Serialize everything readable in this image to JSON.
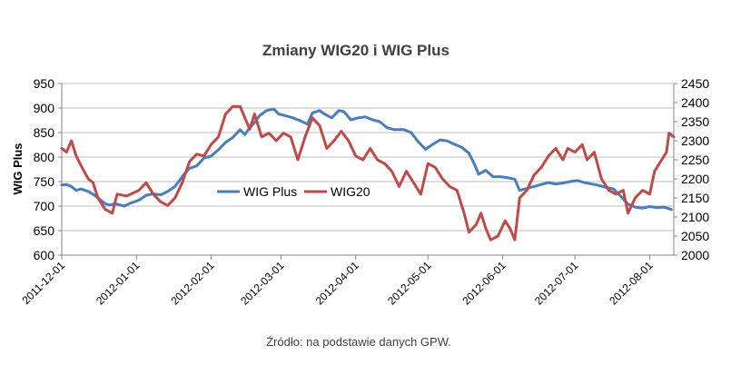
{
  "chart_data": {
    "type": "line",
    "title": "Zmiany WIG20 i WIG Plus",
    "ylabel": "WIG Plus",
    "y2label": "",
    "ylim": [
      600,
      950
    ],
    "y_ticks": [
      "950",
      "900",
      "850",
      "800",
      "750",
      "700",
      "650",
      "600"
    ],
    "y2lim": [
      2000,
      2450
    ],
    "y2_ticks": [
      "2450",
      "2400",
      "2350",
      "2300",
      "2250",
      "2200",
      "2150",
      "2100",
      "2050",
      "2000"
    ],
    "xlim": [
      "2011-12-01",
      "2012-08-11"
    ],
    "x_ticks": [
      "2011-12-01",
      "2012-01-01",
      "2012-02-01",
      "2012-03-01",
      "2012-04-01",
      "2012-05-01",
      "2012-06-01",
      "2012-07-01",
      "2012-08-01"
    ],
    "grid": true,
    "legend_position": "center-left",
    "series": [
      {
        "name": "WIG Plus",
        "axis": "left",
        "color": "#4a7ebb",
        "points": [
          [
            "2011-12-01",
            743
          ],
          [
            "2011-12-03",
            744
          ],
          [
            "2011-12-05",
            740
          ],
          [
            "2011-12-07",
            732
          ],
          [
            "2011-12-09",
            735
          ],
          [
            "2011-12-12",
            730
          ],
          [
            "2011-12-14",
            724
          ],
          [
            "2011-12-16",
            717
          ],
          [
            "2011-12-19",
            705
          ],
          [
            "2011-12-21",
            702
          ],
          [
            "2011-12-23",
            705
          ],
          [
            "2011-12-27",
            700
          ],
          [
            "2011-12-29",
            705
          ],
          [
            "2012-01-02",
            712
          ],
          [
            "2012-01-05",
            722
          ],
          [
            "2012-01-08",
            725
          ],
          [
            "2012-01-11",
            723
          ],
          [
            "2012-01-14",
            730
          ],
          [
            "2012-01-17",
            740
          ],
          [
            "2012-01-20",
            760
          ],
          [
            "2012-01-23",
            777
          ],
          [
            "2012-01-26",
            782
          ],
          [
            "2012-01-29",
            798
          ],
          [
            "2012-02-01",
            802
          ],
          [
            "2012-02-04",
            815
          ],
          [
            "2012-02-07",
            830
          ],
          [
            "2012-02-10",
            840
          ],
          [
            "2012-02-13",
            856
          ],
          [
            "2012-02-15",
            846
          ],
          [
            "2012-02-17",
            860
          ],
          [
            "2012-02-19",
            870
          ],
          [
            "2012-02-21",
            884
          ],
          [
            "2012-02-24",
            895
          ],
          [
            "2012-02-27",
            898
          ],
          [
            "2012-02-29",
            888
          ],
          [
            "2012-03-03",
            884
          ],
          [
            "2012-03-06",
            880
          ],
          [
            "2012-03-09",
            874
          ],
          [
            "2012-03-12",
            867
          ],
          [
            "2012-03-14",
            890
          ],
          [
            "2012-03-17",
            895
          ],
          [
            "2012-03-19",
            888
          ],
          [
            "2012-03-22",
            880
          ],
          [
            "2012-03-25",
            895
          ],
          [
            "2012-03-27",
            893
          ],
          [
            "2012-03-30",
            876
          ],
          [
            "2012-04-02",
            880
          ],
          [
            "2012-04-05",
            882
          ],
          [
            "2012-04-08",
            876
          ],
          [
            "2012-04-11",
            872
          ],
          [
            "2012-04-14",
            860
          ],
          [
            "2012-04-17",
            856
          ],
          [
            "2012-04-21",
            856
          ],
          [
            "2012-04-24",
            850
          ],
          [
            "2012-04-27",
            831
          ],
          [
            "2012-04-30",
            816
          ],
          [
            "2012-05-03",
            826
          ],
          [
            "2012-05-06",
            835
          ],
          [
            "2012-05-09",
            833
          ],
          [
            "2012-05-12",
            826
          ],
          [
            "2012-05-15",
            820
          ],
          [
            "2012-05-18",
            808
          ],
          [
            "2012-05-20",
            788
          ],
          [
            "2012-05-22",
            765
          ],
          [
            "2012-05-25",
            773
          ],
          [
            "2012-05-28",
            760
          ],
          [
            "2012-05-31",
            760
          ],
          [
            "2012-06-03",
            758
          ],
          [
            "2012-06-06",
            755
          ],
          [
            "2012-06-08",
            732
          ],
          [
            "2012-06-11",
            736
          ],
          [
            "2012-06-14",
            740
          ],
          [
            "2012-06-17",
            744
          ],
          [
            "2012-06-20",
            748
          ],
          [
            "2012-06-23",
            745
          ],
          [
            "2012-06-26",
            747
          ],
          [
            "2012-06-29",
            750
          ],
          [
            "2012-07-02",
            752
          ],
          [
            "2012-07-05",
            748
          ],
          [
            "2012-07-08",
            745
          ],
          [
            "2012-07-11",
            742
          ],
          [
            "2012-07-14",
            738
          ],
          [
            "2012-07-17",
            735
          ],
          [
            "2012-07-20",
            720
          ],
          [
            "2012-07-23",
            704
          ],
          [
            "2012-07-26",
            698
          ],
          [
            "2012-07-29",
            696
          ],
          [
            "2012-08-01",
            699
          ],
          [
            "2012-08-04",
            697
          ],
          [
            "2012-08-07",
            698
          ],
          [
            "2012-08-10",
            693
          ]
        ]
      },
      {
        "name": "WIG20",
        "axis": "right",
        "color": "#be4b48",
        "points": [
          [
            "2011-12-01",
            2280
          ],
          [
            "2011-12-03",
            2270
          ],
          [
            "2011-12-05",
            2300
          ],
          [
            "2011-12-07",
            2260
          ],
          [
            "2011-12-09",
            2235
          ],
          [
            "2011-12-12",
            2200
          ],
          [
            "2011-12-14",
            2190
          ],
          [
            "2011-12-16",
            2150
          ],
          [
            "2011-12-19",
            2120
          ],
          [
            "2011-12-22",
            2110
          ],
          [
            "2011-12-24",
            2160
          ],
          [
            "2011-12-28",
            2155
          ],
          [
            "2012-01-02",
            2170
          ],
          [
            "2012-01-05",
            2190
          ],
          [
            "2012-01-08",
            2160
          ],
          [
            "2012-01-11",
            2140
          ],
          [
            "2012-01-14",
            2130
          ],
          [
            "2012-01-17",
            2150
          ],
          [
            "2012-01-20",
            2190
          ],
          [
            "2012-01-23",
            2245
          ],
          [
            "2012-01-26",
            2265
          ],
          [
            "2012-01-29",
            2260
          ],
          [
            "2012-02-01",
            2290
          ],
          [
            "2012-02-04",
            2310
          ],
          [
            "2012-02-07",
            2370
          ],
          [
            "2012-02-10",
            2390
          ],
          [
            "2012-02-13",
            2390
          ],
          [
            "2012-02-15",
            2360
          ],
          [
            "2012-02-17",
            2330
          ],
          [
            "2012-02-19",
            2370
          ],
          [
            "2012-02-22",
            2310
          ],
          [
            "2012-02-25",
            2320
          ],
          [
            "2012-02-28",
            2300
          ],
          [
            "2012-03-02",
            2320
          ],
          [
            "2012-03-05",
            2310
          ],
          [
            "2012-03-08",
            2250
          ],
          [
            "2012-03-11",
            2310
          ],
          [
            "2012-03-14",
            2360
          ],
          [
            "2012-03-17",
            2340
          ],
          [
            "2012-03-20",
            2280
          ],
          [
            "2012-03-23",
            2300
          ],
          [
            "2012-03-26",
            2325
          ],
          [
            "2012-03-29",
            2300
          ],
          [
            "2012-04-01",
            2260
          ],
          [
            "2012-04-04",
            2250
          ],
          [
            "2012-04-07",
            2280
          ],
          [
            "2012-04-10",
            2250
          ],
          [
            "2012-04-13",
            2240
          ],
          [
            "2012-04-16",
            2220
          ],
          [
            "2012-04-19",
            2180
          ],
          [
            "2012-04-22",
            2220
          ],
          [
            "2012-04-25",
            2190
          ],
          [
            "2012-04-28",
            2160
          ],
          [
            "2012-05-01",
            2240
          ],
          [
            "2012-05-04",
            2230
          ],
          [
            "2012-05-07",
            2200
          ],
          [
            "2012-05-10",
            2180
          ],
          [
            "2012-05-13",
            2170
          ],
          [
            "2012-05-16",
            2110
          ],
          [
            "2012-05-18",
            2060
          ],
          [
            "2012-05-21",
            2080
          ],
          [
            "2012-05-23",
            2110
          ],
          [
            "2012-05-25",
            2070
          ],
          [
            "2012-05-27",
            2040
          ],
          [
            "2012-05-30",
            2050
          ],
          [
            "2012-06-02",
            2090
          ],
          [
            "2012-06-04",
            2070
          ],
          [
            "2012-06-06",
            2040
          ],
          [
            "2012-06-08",
            2150
          ],
          [
            "2012-06-11",
            2170
          ],
          [
            "2012-06-14",
            2210
          ],
          [
            "2012-06-17",
            2230
          ],
          [
            "2012-06-20",
            2260
          ],
          [
            "2012-06-23",
            2280
          ],
          [
            "2012-06-26",
            2250
          ],
          [
            "2012-06-28",
            2280
          ],
          [
            "2012-07-01",
            2270
          ],
          [
            "2012-07-04",
            2290
          ],
          [
            "2012-07-06",
            2250
          ],
          [
            "2012-07-09",
            2270
          ],
          [
            "2012-07-12",
            2200
          ],
          [
            "2012-07-15",
            2170
          ],
          [
            "2012-07-18",
            2160
          ],
          [
            "2012-07-21",
            2170
          ],
          [
            "2012-07-23",
            2110
          ],
          [
            "2012-07-26",
            2150
          ],
          [
            "2012-07-29",
            2170
          ],
          [
            "2012-08-01",
            2160
          ],
          [
            "2012-08-03",
            2220
          ],
          [
            "2012-08-06",
            2250
          ],
          [
            "2012-08-08",
            2270
          ],
          [
            "2012-08-09",
            2320
          ],
          [
            "2012-08-11",
            2310
          ]
        ]
      }
    ]
  },
  "source_note": "Źródło: na podstawie danych GPW."
}
